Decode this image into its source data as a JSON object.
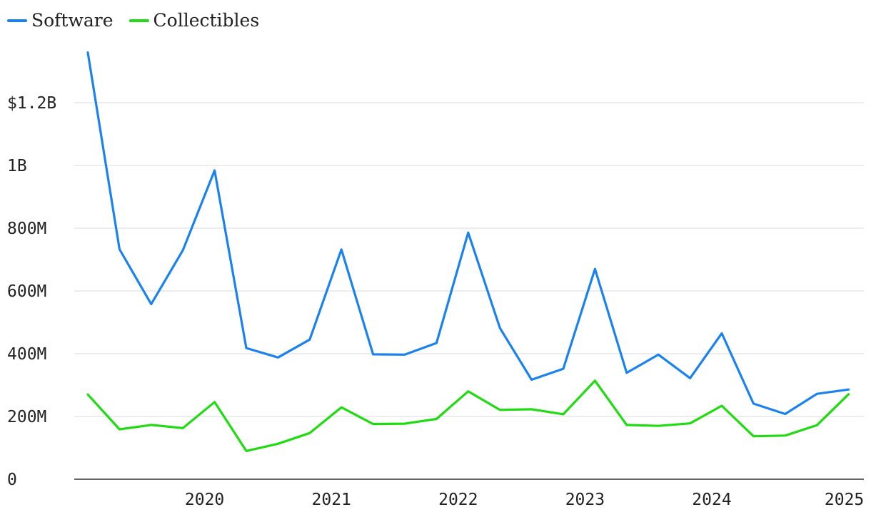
{
  "chart_data": {
    "type": "line",
    "title": "",
    "xlabel": "",
    "ylabel": "",
    "ylim": [
      0,
      1400000000
    ],
    "y_ticks": [
      {
        "value": 0,
        "label": "0"
      },
      {
        "value": 200000000,
        "label": "200M"
      },
      {
        "value": 400000000,
        "label": "400M"
      },
      {
        "value": 600000000,
        "label": "600M"
      },
      {
        "value": 800000000,
        "label": "800M"
      },
      {
        "value": 1000000000,
        "label": "1B"
      },
      {
        "value": 1200000000,
        "label": "$1.2B"
      }
    ],
    "x_ticks": [
      "2020",
      "2021",
      "2022",
      "2023",
      "2024",
      "2025"
    ],
    "x": [
      "2019 Q1",
      "2019 Q2",
      "2019 Q3",
      "2019 Q4",
      "2020 Q1",
      "2020 Q2",
      "2020 Q3",
      "2020 Q4",
      "2021 Q1",
      "2021 Q2",
      "2021 Q3",
      "2021 Q4",
      "2022 Q1",
      "2022 Q2",
      "2022 Q3",
      "2022 Q4",
      "2023 Q1",
      "2023 Q2",
      "2023 Q3",
      "2023 Q4",
      "2024 Q1",
      "2024 Q2",
      "2024 Q3",
      "2024 Q4",
      "2025 Q1"
    ],
    "grid": true,
    "legend_position": "top-left",
    "series": [
      {
        "name": "Software",
        "color": "#1a82f0",
        "values": [
          1360000000,
          733000000,
          558000000,
          730000000,
          984000000,
          418000000,
          388000000,
          445000000,
          732000000,
          398000000,
          397000000,
          434000000,
          786000000,
          482000000,
          317000000,
          352000000,
          670000000,
          339000000,
          397000000,
          322000000,
          465000000,
          241000000,
          208000000,
          272000000,
          286000000
        ]
      },
      {
        "name": "Collectibles",
        "color": "#1fdc10",
        "values": [
          270000000,
          159000000,
          173000000,
          163000000,
          246000000,
          90000000,
          113000000,
          147000000,
          229000000,
          176000000,
          177000000,
          192000000,
          280000000,
          221000000,
          223000000,
          207000000,
          314000000,
          173000000,
          170000000,
          178000000,
          234000000,
          137000000,
          139000000,
          172000000,
          271000000
        ]
      }
    ]
  }
}
